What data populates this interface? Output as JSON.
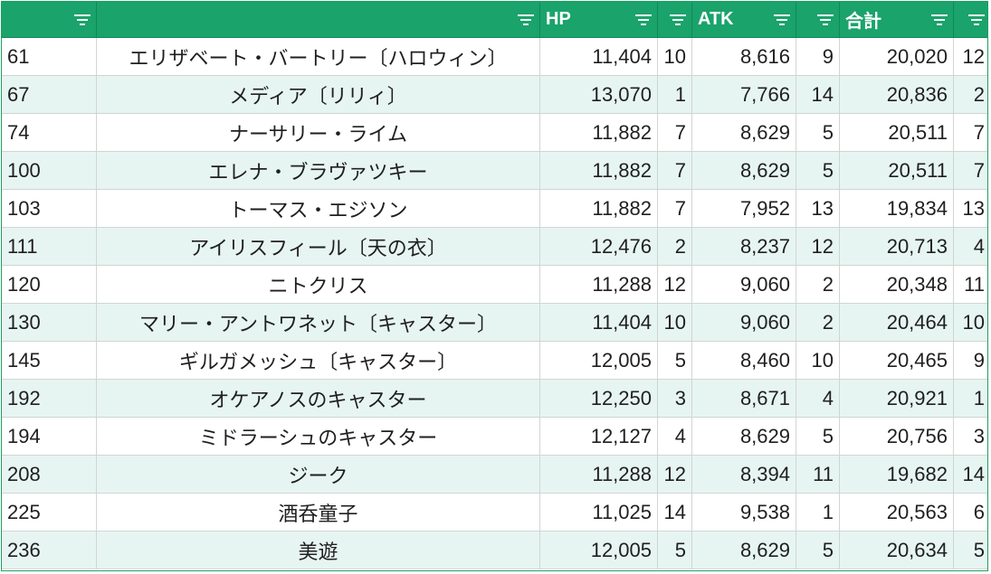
{
  "header": {
    "columns": [
      {
        "label": "",
        "icon": "filter-icon"
      },
      {
        "label": "",
        "icon": "filter-icon"
      },
      {
        "label": "HP",
        "icon": "filter-icon"
      },
      {
        "label": "",
        "icon": "filter-icon"
      },
      {
        "label": "ATK",
        "icon": "filter-icon"
      },
      {
        "label": "",
        "icon": "filter-icon"
      },
      {
        "label": "合計",
        "icon": "filter-icon"
      },
      {
        "label": "",
        "icon": "filter-icon"
      }
    ]
  },
  "rows": [
    {
      "no": "61",
      "name": "エリザベート・バートリー〔ハロウィン〕",
      "hp": "11,404",
      "hp_rank": "10",
      "atk": "8,616",
      "atk_rank": "9",
      "total": "20,020",
      "total_rank": "12"
    },
    {
      "no": "67",
      "name": "メディア〔リリィ〕",
      "hp": "13,070",
      "hp_rank": "1",
      "atk": "7,766",
      "atk_rank": "14",
      "total": "20,836",
      "total_rank": "2"
    },
    {
      "no": "74",
      "name": "ナーサリー・ライム",
      "hp": "11,882",
      "hp_rank": "7",
      "atk": "8,629",
      "atk_rank": "5",
      "total": "20,511",
      "total_rank": "7"
    },
    {
      "no": "100",
      "name": "エレナ・ブラヴァツキー",
      "hp": "11,882",
      "hp_rank": "7",
      "atk": "8,629",
      "atk_rank": "5",
      "total": "20,511",
      "total_rank": "7"
    },
    {
      "no": "103",
      "name": "トーマス・エジソン",
      "hp": "11,882",
      "hp_rank": "7",
      "atk": "7,952",
      "atk_rank": "13",
      "total": "19,834",
      "total_rank": "13"
    },
    {
      "no": "111",
      "name": "アイリスフィール〔天の衣〕",
      "hp": "12,476",
      "hp_rank": "2",
      "atk": "8,237",
      "atk_rank": "12",
      "total": "20,713",
      "total_rank": "4"
    },
    {
      "no": "120",
      "name": "ニトクリス",
      "hp": "11,288",
      "hp_rank": "12",
      "atk": "9,060",
      "atk_rank": "2",
      "total": "20,348",
      "total_rank": "11"
    },
    {
      "no": "130",
      "name": "マリー・アントワネット〔キャスター〕",
      "hp": "11,404",
      "hp_rank": "10",
      "atk": "9,060",
      "atk_rank": "2",
      "total": "20,464",
      "total_rank": "10"
    },
    {
      "no": "145",
      "name": "ギルガメッシュ〔キャスター〕",
      "hp": "12,005",
      "hp_rank": "5",
      "atk": "8,460",
      "atk_rank": "10",
      "total": "20,465",
      "total_rank": "9"
    },
    {
      "no": "192",
      "name": "オケアノスのキャスター",
      "hp": "12,250",
      "hp_rank": "3",
      "atk": "8,671",
      "atk_rank": "4",
      "total": "20,921",
      "total_rank": "1"
    },
    {
      "no": "194",
      "name": "ミドラーシュのキャスター",
      "hp": "12,127",
      "hp_rank": "4",
      "atk": "8,629",
      "atk_rank": "5",
      "total": "20,756",
      "total_rank": "3"
    },
    {
      "no": "208",
      "name": "ジーク",
      "hp": "11,288",
      "hp_rank": "12",
      "atk": "8,394",
      "atk_rank": "11",
      "total": "19,682",
      "total_rank": "14"
    },
    {
      "no": "225",
      "name": "酒呑童子",
      "hp": "11,025",
      "hp_rank": "14",
      "atk": "9,538",
      "atk_rank": "1",
      "total": "20,563",
      "total_rank": "6"
    },
    {
      "no": "236",
      "name": "美遊",
      "hp": "12,005",
      "hp_rank": "5",
      "atk": "8,629",
      "atk_rank": "5",
      "total": "20,634",
      "total_rank": "5"
    }
  ],
  "colors": {
    "header_bg": "#1aa36b",
    "alt_row_bg": "#e7f5f2",
    "border": "#1e9e63"
  }
}
